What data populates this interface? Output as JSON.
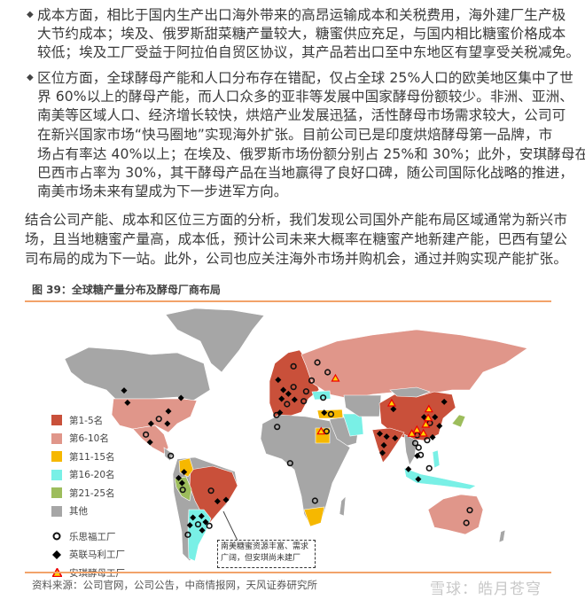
{
  "paragraphs": {
    "p1": [
      "成本方面，相比于国内生产出口海外带来的高昂运输成本和关税费用，海外建厂生产极",
      "大节约成本；埃及、俄罗斯甜菜糖产量较大，糖蜜供应充足，与国内相比糖蜜价格成本",
      "较低；埃及工厂受益于阿拉伯自贸区协议，其产品若出口至中东地区有望享受关税减免。"
    ],
    "p2": [
      "区位方面，全球酵母产能和人口分布存在错配，仅占全球 25%人口的欧美地区集中了世",
      "界 60%以上的酵母产能，而人口众多的亚非等发展中国家酵母份额较少。非洲、亚洲、",
      "南美等区域人口、经济增长较快，烘焙产业发展迅猛，活性酵母市场需求较大，公司可",
      "在新兴国家市场“快马圈地”实现海外扩张。目前公司已是印度烘焙酵母第一品牌，市",
      "场占有率达 40%以上；在埃及、俄罗斯市场份额分别占 25%和 30%；此外，安琪酵母在",
      "巴西市占率为 30%，其干酵母产品在当地赢得了良好口碑，随公司国际化战略的推进，",
      "南美市场未来有望成为下一步进军方向。"
    ],
    "p3": [
      "结合公司产能、成本和区位三方面的分析，我们发现公司国外产能布局区域通常为新兴市",
      "场，且当地糖蜜产量高，成本低，预计公司未来大概率在糖蜜产地新建产能，巴西有望公",
      "司布局的成为下一站。此外，公司也应关注海外市场并购机会，通过并购实现产能扩张。"
    ]
  },
  "figure": {
    "caption": "图 39：全球糖产量分布及酵母厂商布局",
    "legend": [
      {
        "label": "第1-5名",
        "color": "#c9503a"
      },
      {
        "label": "第6-10名",
        "color": "#e0968a"
      },
      {
        "label": "第11-15名",
        "color": "#f6b800"
      },
      {
        "label": "第16-20名",
        "color": "#79f0e6"
      },
      {
        "label": "第21-25名",
        "color": "#9dbd5c"
      },
      {
        "label": "其他",
        "color": "#a6a6a6"
      }
    ],
    "markers": [
      {
        "label": "乐思福工厂",
        "icon": "open-circle-icon"
      },
      {
        "label": "英联马利工厂",
        "icon": "black-diamond-icon"
      },
      {
        "label": "安琪酵母工厂",
        "icon": "red-triangle-icon"
      }
    ],
    "annotation": [
      "南美糖蜜资源丰富、需求",
      "广阔，但安琪尚未建厂"
    ],
    "accent": "#f2a36a"
  },
  "source": "资料来源：公司官网，公司公告，中商情报网，天风证券研究所",
  "watermark": "雪球：皓月苍穹"
}
